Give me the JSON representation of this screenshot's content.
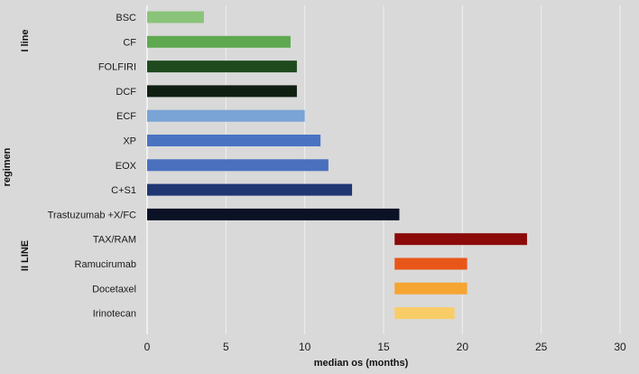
{
  "chart_data": {
    "type": "bar",
    "orientation": "horizontal",
    "title": "",
    "xlabel": "median os (months)",
    "ylabel": "regimen",
    "xlim": [
      0,
      30
    ],
    "xticks": [
      0,
      5,
      10,
      15,
      20,
      25,
      30
    ],
    "grid": "vertical",
    "groups": [
      {
        "label": "I line",
        "categories": [
          "BSC",
          "CF",
          "FOLFIRI",
          "DCF",
          "ECF",
          "XP",
          "EOX",
          "C+S1",
          "Trastuzumab +X/FC"
        ]
      },
      {
        "label": "II LINE",
        "categories": [
          "TAX/RAM",
          "Ramucirumab",
          "Docetaxel",
          "Irinotecan"
        ]
      }
    ],
    "bars": [
      {
        "category": "BSC",
        "start": 0,
        "end": 3.6,
        "color": "#8ac37a"
      },
      {
        "category": "CF",
        "start": 0,
        "end": 9.1,
        "color": "#5ea84f"
      },
      {
        "category": "FOLFIRI",
        "start": 0,
        "end": 9.5,
        "color": "#1f4a1e"
      },
      {
        "category": "DCF",
        "start": 0,
        "end": 9.5,
        "color": "#0f1f12"
      },
      {
        "category": "ECF",
        "start": 0,
        "end": 10.0,
        "color": "#7aa3d6"
      },
      {
        "category": "XP",
        "start": 0,
        "end": 11.0,
        "color": "#4a73c2"
      },
      {
        "category": "EOX",
        "start": 0,
        "end": 11.5,
        "color": "#4a70be"
      },
      {
        "category": "C+S1",
        "start": 0,
        "end": 13.0,
        "color": "#1f3673"
      },
      {
        "category": "Trastuzumab +X/FC",
        "start": 0,
        "end": 16.0,
        "color": "#0b1226"
      },
      {
        "category": "TAX/RAM",
        "start": 15.7,
        "end": 24.1,
        "color": "#8b0a0a"
      },
      {
        "category": "Ramucirumab",
        "start": 15.7,
        "end": 20.3,
        "color": "#e8561a"
      },
      {
        "category": "Docetaxel",
        "start": 15.7,
        "end": 20.3,
        "color": "#f5a531"
      },
      {
        "category": "Irinotecan",
        "start": 15.7,
        "end": 19.5,
        "color": "#f8cc66"
      }
    ]
  }
}
